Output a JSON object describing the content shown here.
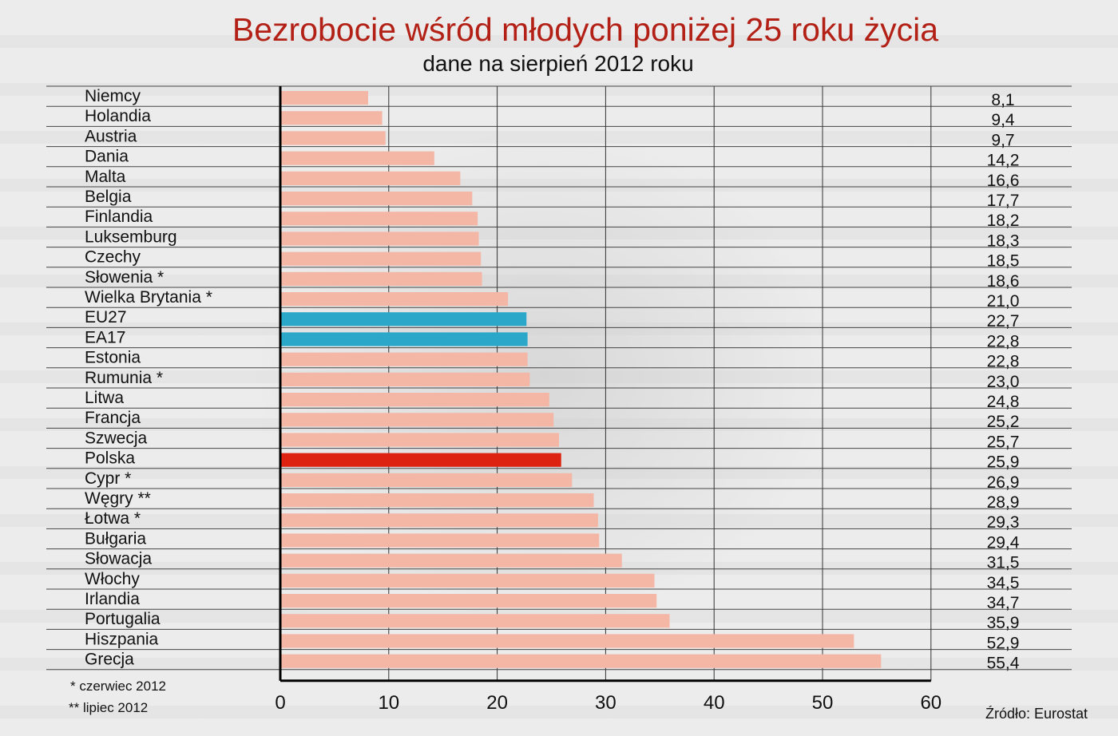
{
  "chart_data": {
    "type": "bar",
    "orientation": "horizontal",
    "title": "Bezrobocie wśród młodych poniżej 25 roku życia",
    "subtitle": "dane na sierpień 2012 roku",
    "categories": [
      "Niemcy",
      "Holandia",
      "Austria",
      "Dania",
      "Malta",
      "Belgia",
      "Finlandia",
      "Luksemburg",
      "Czechy",
      "Słowenia *",
      "Wielka Brytania *",
      "EU27",
      "EA17",
      "Estonia",
      "Rumunia *",
      "Litwa",
      "Francja",
      "Szwecja",
      "Polska",
      "Cypr *",
      "Węgry **",
      "Łotwa *",
      "Bułgaria",
      "Słowacja",
      "Włochy",
      "Irlandia",
      "Portugalia",
      "Hiszpania",
      "Grecja"
    ],
    "values": [
      8.1,
      9.4,
      9.7,
      14.2,
      16.6,
      17.7,
      18.2,
      18.3,
      18.5,
      18.6,
      21.0,
      22.7,
      22.8,
      22.8,
      23.0,
      24.8,
      25.2,
      25.7,
      25.9,
      26.9,
      28.9,
      29.3,
      29.4,
      31.5,
      34.5,
      34.7,
      35.9,
      52.9,
      55.4
    ],
    "value_labels": [
      "8,1",
      "9,4",
      "9,7",
      "14,2",
      "16,6",
      "17,7",
      "18,2",
      "18,3",
      "18,5",
      "18,6",
      "21,0",
      "22,7",
      "22,8",
      "22,8",
      "23,0",
      "24,8",
      "25,2",
      "25,7",
      "25,9",
      "26,9",
      "28,9",
      "29,3",
      "29,4",
      "31,5",
      "34,5",
      "34,7",
      "35,9",
      "52,9",
      "55,4"
    ],
    "xlim": [
      0,
      60
    ],
    "xticks": [
      "0",
      "10",
      "20",
      "30",
      "40",
      "50",
      "60"
    ],
    "grid": true,
    "colors": {
      "default": "#f4b7a6",
      "highlight_eu": "#2aa7c9",
      "highlight_pl": "#dd2211",
      "title": "#b32016"
    },
    "highlight": {
      "EU27": "highlight_eu",
      "EA17": "highlight_eu",
      "Polska": "highlight_pl"
    }
  },
  "footnotes": [
    "* czerwiec 2012",
    "** lipiec 2012"
  ],
  "source": "Źródło: Eurostat"
}
